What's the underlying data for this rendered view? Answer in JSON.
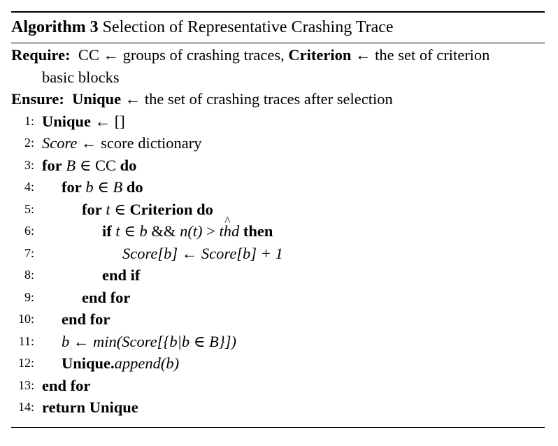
{
  "algorithm": {
    "label": "Algorithm 3",
    "title": "Selection of Representative Crashing Trace",
    "require": {
      "keyword": "Require:",
      "line1": "CC ← groups of crashing traces, ",
      "criterion_name": "Criterion",
      "line1_rest": " ← the set of criterion",
      "line2": "basic blocks"
    },
    "ensure": {
      "keyword": "Ensure:",
      "unique_name": "Unique",
      "text": " ← the set of crashing traces after selection"
    },
    "line_numbers": [
      "1:",
      "2:",
      "3:",
      "4:",
      "5:",
      "6:",
      "7:",
      "8:",
      "9:",
      "10:",
      "11:",
      "12:",
      "13:",
      "14:"
    ],
    "lines": {
      "l1_var": "Unique",
      "l1_rest": " ← []",
      "l2_var": "Score",
      "l2_rest": " ← score dictionary",
      "l3_kw_for": "for",
      "l3_var": "B",
      "l3_rest": " ∈ CC ",
      "l3_kw_do": "do",
      "l4_kw_for": "for",
      "l4_var_b": "b",
      "l4_in": " ∈ ",
      "l4_var_B": "B",
      "l4_kw_do": "do",
      "l5_kw_for": "for",
      "l5_var_t": "t",
      "l5_in": " ∈ ",
      "l5_set": "Criterion",
      "l5_kw_do": "do",
      "l6_kw_if": "if",
      "l6_expr_a": "t",
      "l6_expr_b": " ∈ ",
      "l6_expr_c": "b",
      "l6_expr_d": " && ",
      "l6_expr_e": "n(t)",
      "l6_expr_f": " > ",
      "l6_expr_g_t": "t",
      "l6_expr_g_h": "h",
      "l6_expr_g_d": "d",
      "l6_hat": "^",
      "l6_kw_then": "then",
      "l7_expr": "Score[b] ← Score[b] + 1",
      "l8_text": "end if",
      "l9_text": "end for",
      "l10_text": "end for",
      "l11_expr": "b ← min(Score[{b|b ∈ B}])",
      "l12_obj": "Unique.",
      "l12_method": "append(b)",
      "l13_text": "end for",
      "l14_kw": "return",
      "l14_val": " Unique"
    }
  }
}
